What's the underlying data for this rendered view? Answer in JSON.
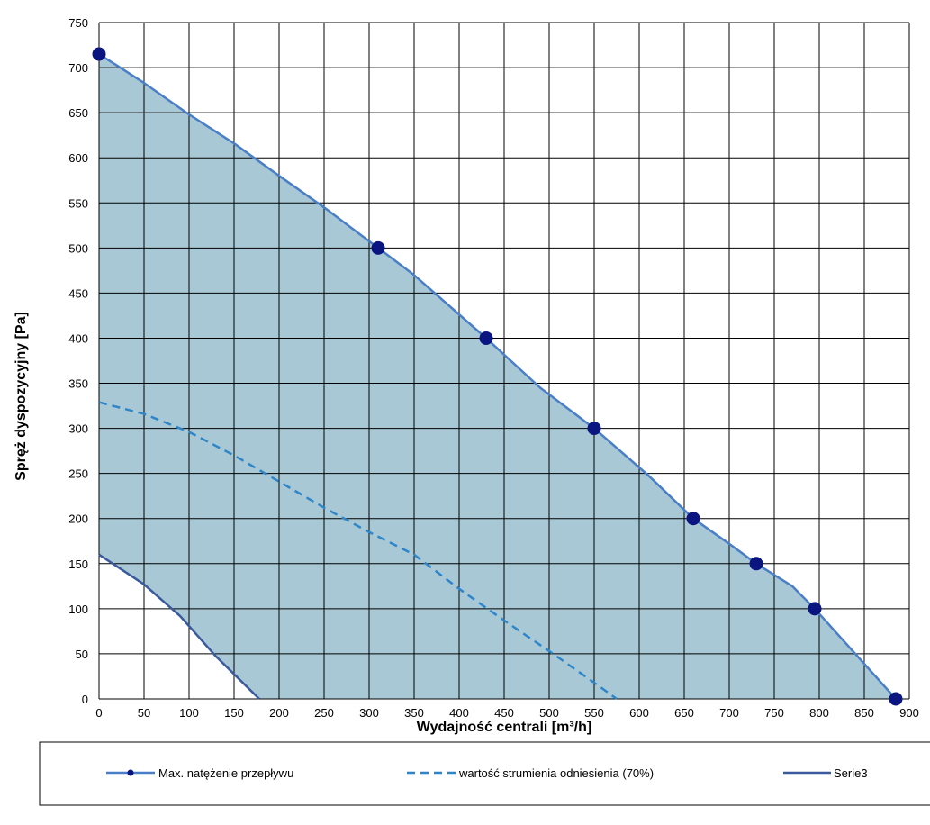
{
  "chart_data": {
    "type": "area",
    "xlabel": "Wydajność centrali [m³/h]",
    "ylabel": "Spręż  dyspozycyjny [Pa]",
    "xlim": [
      0,
      900
    ],
    "ylim": [
      0,
      750
    ],
    "x_ticks": [
      "0",
      "50",
      "100",
      "150",
      "200",
      "250",
      "300",
      "350",
      "400",
      "450",
      "500",
      "550",
      "600",
      "650",
      "700",
      "750",
      "800",
      "850",
      "900"
    ],
    "y_ticks": [
      "0",
      "50",
      "100",
      "150",
      "200",
      "250",
      "300",
      "350",
      "400",
      "450",
      "500",
      "550",
      "600",
      "650",
      "700",
      "750"
    ],
    "grid": true,
    "legend_position": "bottom",
    "colors": {
      "fill": "#a8c8d6",
      "max_line": "#4a7fc8",
      "marker": "#0a1580",
      "ref_line": "#2e86c8",
      "serie3_line": "#3a5a9c"
    },
    "series": [
      {
        "name": "Max. natężenie przepływu",
        "style": "solid-with-markers",
        "points": [
          [
            0,
            715
          ],
          [
            50,
            683
          ],
          [
            100,
            648
          ],
          [
            150,
            616
          ],
          [
            200,
            580
          ],
          [
            250,
            545
          ],
          [
            310,
            500
          ],
          [
            350,
            470
          ],
          [
            430,
            400
          ],
          [
            490,
            345
          ],
          [
            550,
            300
          ],
          [
            610,
            248
          ],
          [
            660,
            200
          ],
          [
            700,
            172
          ],
          [
            730,
            150
          ],
          [
            770,
            125
          ],
          [
            795,
            100
          ],
          [
            840,
            50
          ],
          [
            885,
            0
          ]
        ],
        "markers": [
          [
            0,
            715
          ],
          [
            310,
            500
          ],
          [
            430,
            400
          ],
          [
            550,
            300
          ],
          [
            660,
            200
          ],
          [
            730,
            150
          ],
          [
            795,
            100
          ],
          [
            885,
            0
          ]
        ]
      },
      {
        "name": "wartość strumienia odniesienia (70%)",
        "style": "dashed",
        "points": [
          [
            0,
            329
          ],
          [
            50,
            316
          ],
          [
            100,
            296
          ],
          [
            150,
            270
          ],
          [
            200,
            241
          ],
          [
            250,
            212
          ],
          [
            300,
            185
          ],
          [
            350,
            160
          ],
          [
            400,
            122
          ],
          [
            450,
            87
          ],
          [
            500,
            53
          ],
          [
            550,
            18
          ],
          [
            575,
            0
          ]
        ]
      },
      {
        "name": "Serie3",
        "style": "solid",
        "points": [
          [
            0,
            160
          ],
          [
            50,
            127
          ],
          [
            90,
            92
          ],
          [
            130,
            47
          ],
          [
            178,
            0
          ]
        ]
      }
    ]
  }
}
